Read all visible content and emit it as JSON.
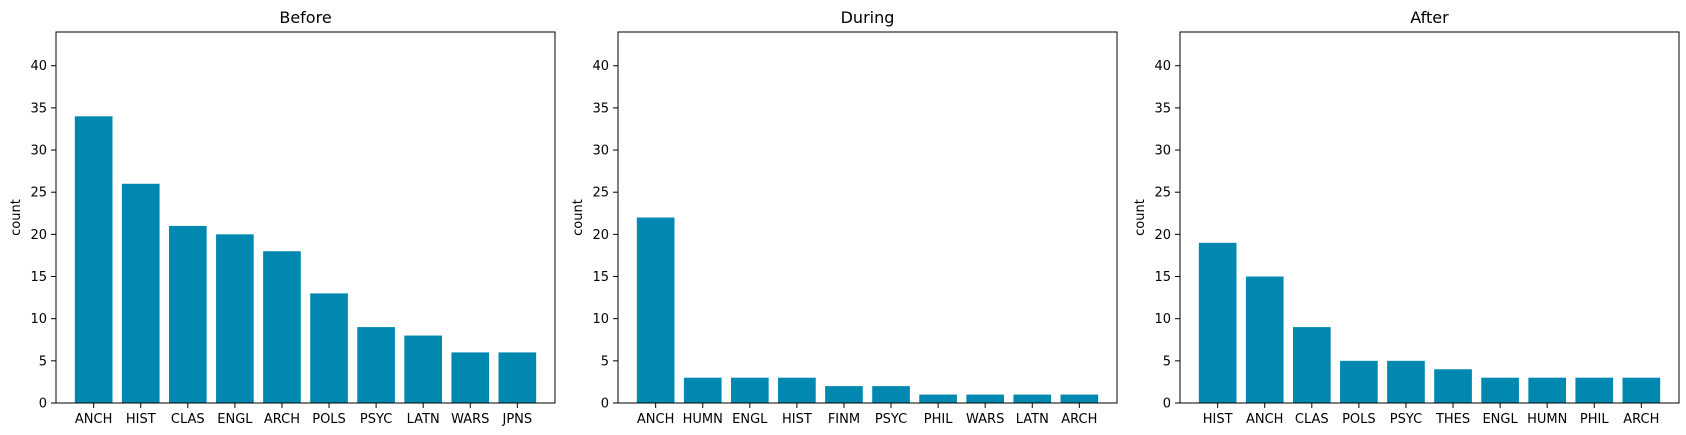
{
  "chart_data": [
    {
      "type": "bar",
      "title": "Before",
      "xlabel": "",
      "ylabel": "count",
      "ylim": [
        0,
        44
      ],
      "yticks": [
        0,
        5,
        10,
        15,
        20,
        25,
        30,
        35,
        40
      ],
      "categories": [
        "ANCH",
        "HIST",
        "CLAS",
        "ENGL",
        "ARCH",
        "POLS",
        "PSYC",
        "LATN",
        "WARS",
        "JPNS"
      ],
      "values": [
        34,
        26,
        21,
        20,
        18,
        13,
        9,
        8,
        6,
        6
      ],
      "color": "#0088b0",
      "grid": false
    },
    {
      "type": "bar",
      "title": "During",
      "xlabel": "",
      "ylabel": "count",
      "ylim": [
        0,
        44
      ],
      "yticks": [
        0,
        5,
        10,
        15,
        20,
        25,
        30,
        35,
        40
      ],
      "categories": [
        "ANCH",
        "HUMN",
        "ENGL",
        "HIST",
        "FINM",
        "PSYC",
        "PHIL",
        "WARS",
        "LATN",
        "ARCH"
      ],
      "values": [
        22,
        3,
        3,
        3,
        2,
        2,
        1,
        1,
        1,
        1
      ],
      "color": "#0088b0",
      "grid": false
    },
    {
      "type": "bar",
      "title": "After",
      "xlabel": "",
      "ylabel": "count",
      "ylim": [
        0,
        44
      ],
      "yticks": [
        0,
        5,
        10,
        15,
        20,
        25,
        30,
        35,
        40
      ],
      "categories": [
        "HIST",
        "ANCH",
        "CLAS",
        "POLS",
        "PSYC",
        "THES",
        "ENGL",
        "HUMN",
        "PHIL",
        "ARCH"
      ],
      "values": [
        19,
        15,
        9,
        5,
        5,
        4,
        3,
        3,
        3,
        3
      ],
      "color": "#0088b0",
      "grid": false
    }
  ]
}
